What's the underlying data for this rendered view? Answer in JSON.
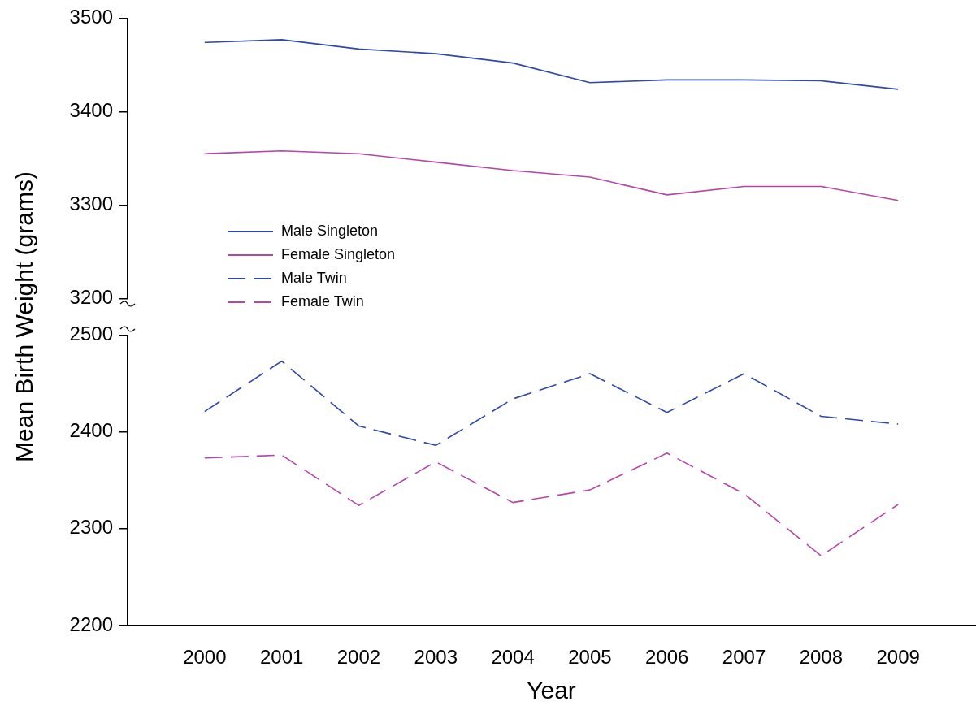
{
  "chart_data": [
    {
      "type": "line",
      "x": [
        2000,
        2001,
        2002,
        2003,
        2004,
        2005,
        2006,
        2007,
        2008,
        2009
      ],
      "xlim": [
        1999,
        2010
      ],
      "ylim": [
        3200,
        3500
      ],
      "yticks": [
        3200,
        3300,
        3400,
        3500
      ],
      "tick_labels": "y",
      "legend": "bottom left",
      "line_style": "solid",
      "series": [
        {
          "name": "Male Singleton",
          "color": "#3048a8",
          "values": [
            3474,
            3477,
            3467,
            3462,
            3452,
            3431,
            3434,
            3434,
            3433,
            3424
          ]
        },
        {
          "name": "Female Singleton",
          "color": "#b446a8",
          "values": [
            3355,
            3358,
            3355,
            3346,
            3337,
            3330,
            3311,
            3320,
            3320,
            3305
          ]
        }
      ]
    },
    {
      "type": "line",
      "x": [
        2000,
        2001,
        2002,
        2003,
        2004,
        2005,
        2006,
        2007,
        2008,
        2009
      ],
      "xlim": [
        1999,
        2010
      ],
      "xticks": [
        2000,
        2001,
        2002,
        2003,
        2004,
        2005,
        2006,
        2007,
        2008,
        2009
      ],
      "ylim": [
        2200,
        2500
      ],
      "yticks": [
        2200,
        2300,
        2400,
        2500
      ],
      "xlabel": "Year",
      "ylabel": "Mean Birth Weight (grams)",
      "legend": "top left",
      "series": [
        {
          "name": "Male Twin",
          "color": "#3048a8",
          "line_style": "dashed",
          "values": [
            2421,
            2473,
            2406,
            2386,
            2434,
            2460,
            2420,
            2460,
            2416,
            2408
          ]
        },
        {
          "name": "Female Twin",
          "color": "#b446a8",
          "line_style": "dashed",
          "values": [
            2373,
            2376,
            2324,
            2369,
            2327,
            2340,
            2378,
            2336,
            2272,
            2325
          ]
        }
      ]
    }
  ]
}
